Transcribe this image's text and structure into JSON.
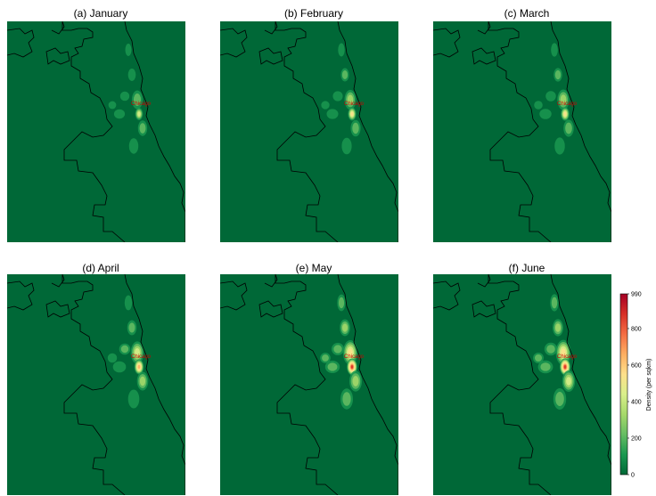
{
  "panels": [
    {
      "id": "a",
      "title": "(a) January",
      "city_label": "Chicago",
      "intensity": 0.45
    },
    {
      "id": "b",
      "title": "(b) February",
      "city_label": "Chicago",
      "intensity": 0.55
    },
    {
      "id": "c",
      "title": "(c) March",
      "city_label": "Chicago",
      "intensity": 0.6
    },
    {
      "id": "d",
      "title": "(d) April",
      "city_label": "Chicago",
      "intensity": 0.75
    },
    {
      "id": "e",
      "title": "(e) May",
      "city_label": "Chicago",
      "intensity": 0.95
    },
    {
      "id": "f",
      "title": "(f) June",
      "city_label": "Chicago",
      "intensity": 1.0
    }
  ],
  "colorbar": {
    "label": "Density (per sqkm)",
    "ticks": [
      "0",
      "200",
      "400",
      "600",
      "800",
      "990"
    ],
    "min": 0,
    "max": 990,
    "colors": [
      "#006837",
      "#1a9850",
      "#66bd63",
      "#a6d96a",
      "#d9ef8b",
      "#fee08b",
      "#fdae61",
      "#f46d43",
      "#d73027",
      "#a50026"
    ]
  },
  "colors": {
    "background": "#006837",
    "boundary": "#000000",
    "city_label": "#cc0000"
  }
}
